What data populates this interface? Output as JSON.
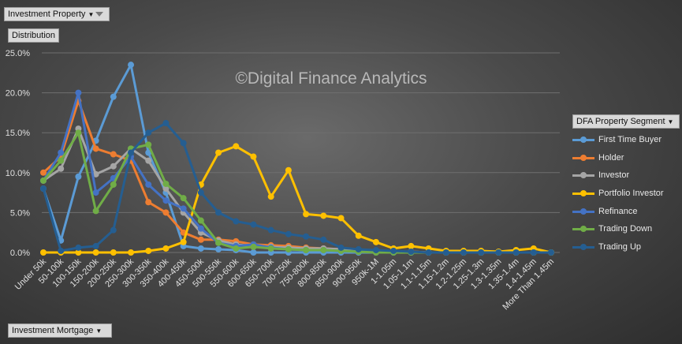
{
  "pivot": {
    "field_button": "Investment Property",
    "values_button": "Distribution",
    "legend_button": "DFA Property Segment",
    "axis_button": "Investment Mortgage"
  },
  "watermark": "©Digital Finance Analytics",
  "colors": {
    "First Time Buyer": "#5b9bd5",
    "Holder": "#ed7d31",
    "Investor": "#a5a5a5",
    "Portfolio Investor": "#ffc000",
    "Refinance": "#4472c4",
    "Trading Down": "#70ad47",
    "Trading Up": "#255e91"
  },
  "chart_data": {
    "type": "line",
    "title": "",
    "xlabel": "",
    "ylabel": "",
    "ylim": [
      0,
      25
    ],
    "y_ticks": [
      "0.0%",
      "5.0%",
      "10.0%",
      "15.0%",
      "20.0%",
      "25.0%"
    ],
    "grid": true,
    "legend_position": "right",
    "categories": [
      "Under 50k",
      "50-100k",
      "100-150k",
      "150-200k",
      "200-250k",
      "250-300k",
      "300-350k",
      "350-400k",
      "400-450k",
      "450-500k",
      "500-550k",
      "550-600k",
      "600-650k",
      "650-700k",
      "700-750k",
      "750-800k",
      "800-850k",
      "850-900k",
      "900-950k",
      "950k-1M",
      "1-1.05m",
      "1.05-1.1m",
      "1.1-1.15m",
      "1.15-1.2m",
      "1.2-1.25m",
      "1.25-1.3m",
      "1.3-1.35m",
      "1.35-1.4m",
      "1.4-1.45m",
      "More Than 1.45m"
    ],
    "series": [
      {
        "name": "First Time Buyer",
        "values": [
          8.0,
          1.5,
          9.5,
          14.0,
          19.5,
          23.5,
          12.5,
          7.5,
          0.8,
          0.5,
          0.4,
          0.3,
          0.0,
          0.0,
          0.0,
          0.0,
          0.0,
          0.0,
          0.0,
          0.0,
          0.0,
          0.0,
          0.0,
          0.0,
          0.0,
          0.0,
          0.0,
          0.0,
          0.0,
          0.0
        ]
      },
      {
        "name": "Holder",
        "values": [
          10.0,
          12.0,
          19.0,
          13.0,
          12.3,
          11.5,
          6.3,
          5.0,
          2.5,
          1.6,
          1.6,
          1.4,
          1.0,
          0.9,
          0.8,
          0.6,
          0.5,
          0.4,
          0.3,
          0.2,
          0.1,
          0.1,
          0.0,
          0.0,
          0.0,
          0.0,
          0.0,
          0.0,
          0.0,
          0.0
        ]
      },
      {
        "name": "Investor",
        "values": [
          9.0,
          10.5,
          15.5,
          9.8,
          10.8,
          13.0,
          11.5,
          8.0,
          5.0,
          2.5,
          1.5,
          1.0,
          0.8,
          0.7,
          0.6,
          0.5,
          0.5,
          0.4,
          0.3,
          0.2,
          0.1,
          0.1,
          0.0,
          0.0,
          0.0,
          0.0,
          0.0,
          0.0,
          0.0,
          0.0
        ]
      },
      {
        "name": "Portfolio Investor",
        "values": [
          0.0,
          0.0,
          0.0,
          0.0,
          0.0,
          0.0,
          0.2,
          0.5,
          1.3,
          8.5,
          12.5,
          13.3,
          12.0,
          7.0,
          10.3,
          4.8,
          4.6,
          4.3,
          2.1,
          1.3,
          0.5,
          0.8,
          0.5,
          0.2,
          0.2,
          0.2,
          0.1,
          0.3,
          0.5,
          0.0
        ]
      },
      {
        "name": "Refinance",
        "values": [
          9.0,
          12.5,
          20.0,
          7.5,
          9.3,
          12.0,
          8.5,
          6.5,
          5.5,
          3.0,
          1.2,
          0.8,
          1.0,
          0.6,
          0.4,
          0.3,
          0.3,
          0.2,
          0.1,
          0.1,
          0.0,
          0.0,
          0.0,
          0.0,
          0.0,
          0.0,
          0.0,
          0.0,
          0.0,
          0.0
        ]
      },
      {
        "name": "Trading Down",
        "values": [
          9.0,
          11.5,
          15.0,
          5.2,
          8.5,
          13.0,
          13.5,
          8.6,
          6.8,
          4.0,
          1.2,
          0.5,
          0.7,
          0.5,
          0.4,
          0.3,
          0.3,
          0.2,
          0.1,
          0.0,
          0.0,
          0.0,
          0.0,
          0.0,
          0.0,
          0.0,
          0.0,
          0.0,
          0.0,
          0.0
        ]
      },
      {
        "name": "Trading Up",
        "values": [
          8.0,
          0.2,
          0.6,
          0.8,
          2.8,
          12.5,
          15.0,
          16.2,
          13.7,
          7.5,
          5.0,
          3.9,
          3.5,
          2.8,
          2.3,
          2.0,
          1.6,
          0.6,
          0.4,
          0.3,
          0.2,
          0.1,
          0.0,
          0.0,
          0.0,
          0.0,
          0.0,
          0.0,
          0.0,
          0.0
        ]
      }
    ]
  }
}
